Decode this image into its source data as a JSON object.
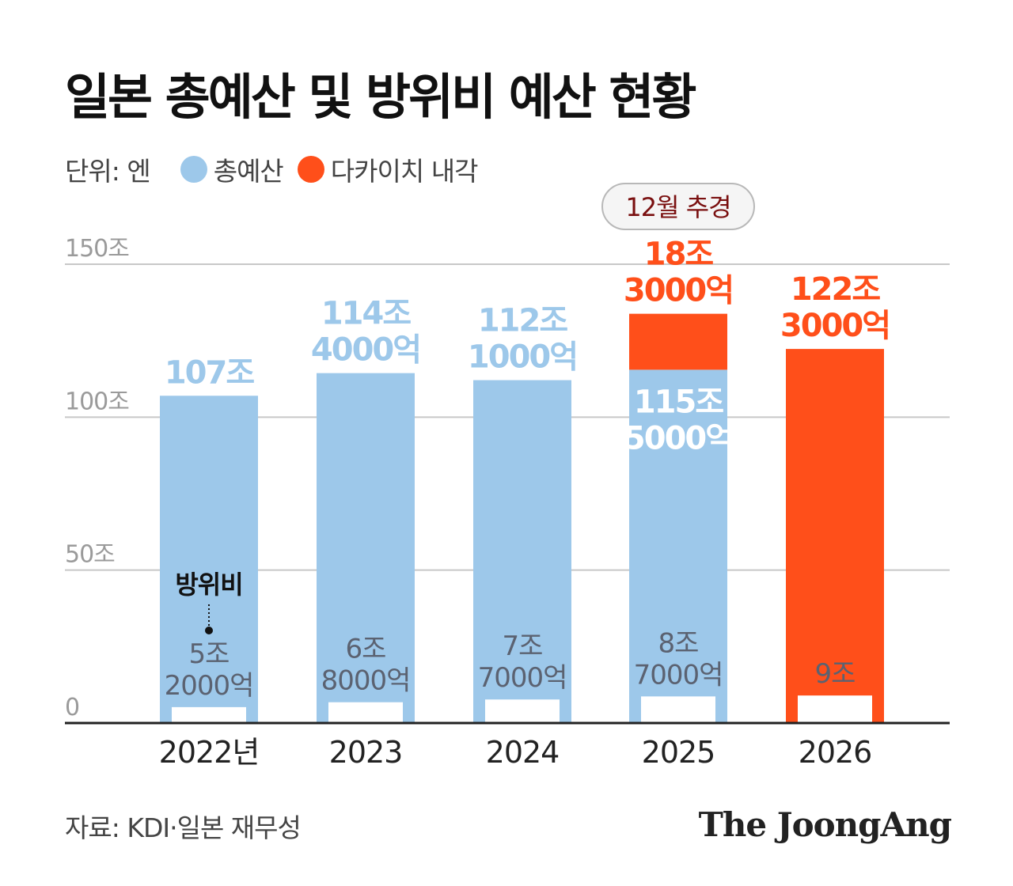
{
  "title": "일본 총예산 및 방위비 예산 현황",
  "legend": {
    "unit": "단위: 엔",
    "items": [
      {
        "label": "총예산",
        "color": "#9dc8ea"
      },
      {
        "label": "다카이치 내각",
        "color": "#ff4f1a"
      }
    ]
  },
  "badge": "12월 추경",
  "defense_label": "방위비",
  "source": "자료: KDI·일본 재무성",
  "brand": "The JoongAng",
  "chart_data": {
    "type": "bar",
    "ylim": [
      0,
      150
    ],
    "yticks": [
      {
        "value": 0,
        "label": "0"
      },
      {
        "value": 50,
        "label": "50조"
      },
      {
        "value": 100,
        "label": "100조"
      },
      {
        "value": 150,
        "label": "150조"
      }
    ],
    "grid": true,
    "colors": {
      "total": "#9dc8ea",
      "takaichi": "#ff4f1a",
      "defense": "#ffffff"
    },
    "categories": [
      "2022년",
      "2023",
      "2024",
      "2025",
      "2026"
    ],
    "series": [
      {
        "name": "총예산",
        "values": [
          107,
          114.4,
          112.1,
          115.5,
          0
        ],
        "labels": [
          [
            "107조"
          ],
          [
            "114조",
            "4000억"
          ],
          [
            "112조",
            "1000억"
          ],
          [
            "115조",
            "5000억"
          ],
          []
        ]
      },
      {
        "name": "다카이치 내각",
        "values": [
          0,
          0,
          0,
          18.3,
          122.3
        ],
        "labels": [
          [],
          [],
          [],
          [
            "18조",
            "3000억"
          ],
          [
            "122조",
            "3000억"
          ]
        ]
      },
      {
        "name": "방위비",
        "values": [
          5.2,
          6.8,
          7.7,
          8.7,
          9.0
        ],
        "labels": [
          [
            "5조",
            "2000억"
          ],
          [
            "6조",
            "8000억"
          ],
          [
            "7조",
            "7000억"
          ],
          [
            "8조",
            "7000억"
          ],
          [
            "9조"
          ]
        ]
      }
    ]
  }
}
